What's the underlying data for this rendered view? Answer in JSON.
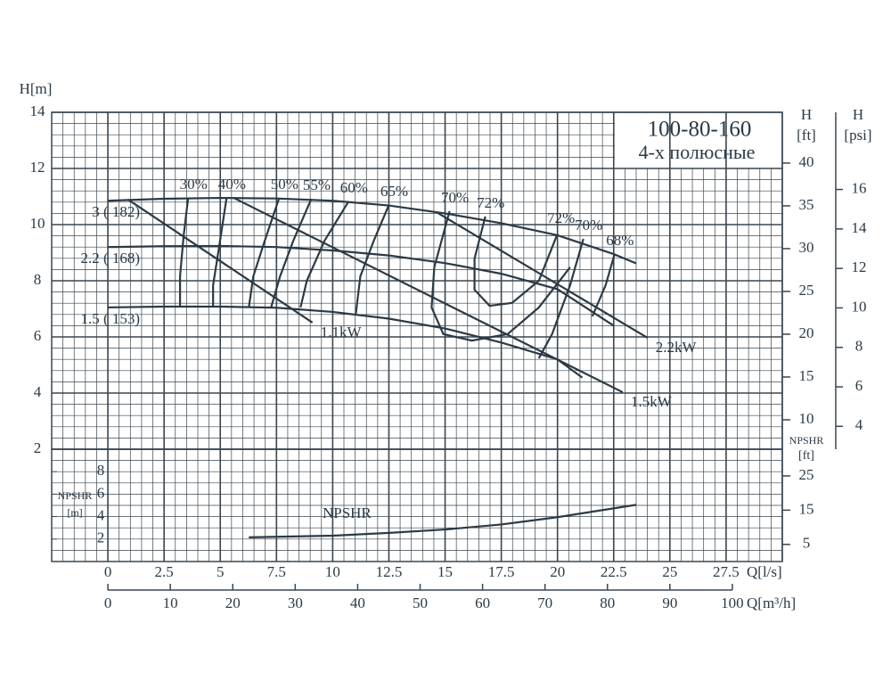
{
  "chart_data": [
    {
      "type": "line",
      "title": "100-80-160",
      "subtitle": "4-х полюсные",
      "ylabel": "H[m]",
      "y2label": [
        "H",
        "[ft]"
      ],
      "y3label": [
        "H",
        "[psi]"
      ],
      "xlim": [
        -2.5,
        30
      ],
      "ylim": [
        2,
        14
      ],
      "yticks": [
        2,
        4,
        6,
        8,
        10,
        12,
        14
      ],
      "y2lim": [
        6.56,
        45.93
      ],
      "y2ticks": [
        10,
        15,
        20,
        25,
        30,
        35,
        40
      ],
      "y3lim": [
        2.84,
        19.91
      ],
      "y3ticks": [
        4,
        6,
        8,
        10,
        12,
        14,
        16
      ],
      "grid": true,
      "minor_grid": {
        "x": 0.5,
        "y": 0.4
      },
      "color": "#2b3a45",
      "head_curves": [
        {
          "name": "3 ( 182)",
          "x": [
            0,
            2.5,
            5,
            7.5,
            10,
            12.5,
            15,
            17.5,
            20,
            22.5,
            23.5
          ],
          "values": [
            10.85,
            10.92,
            10.95,
            10.93,
            10.85,
            10.68,
            10.4,
            10.05,
            9.62,
            8.95,
            8.62
          ]
        },
        {
          "name": "2.2 ( 168)",
          "x": [
            0,
            2.5,
            5,
            7.5,
            10,
            12.5,
            15,
            17.5,
            20,
            22.5
          ],
          "values": [
            9.2,
            9.23,
            9.24,
            9.2,
            9.08,
            8.9,
            8.63,
            8.25,
            7.7,
            6.4
          ]
        },
        {
          "name": "1.5 ( 153)",
          "x": [
            0,
            2.5,
            5,
            7.5,
            10,
            12.5,
            15,
            17.5,
            20,
            21.1
          ],
          "values": [
            7.05,
            7.08,
            7.08,
            7.04,
            6.89,
            6.65,
            6.3,
            5.8,
            5.2,
            4.55
          ]
        }
      ],
      "power_lines": [
        {
          "name": "1.1kW",
          "x": [
            0.9,
            9.1
          ],
          "values": [
            10.89,
            6.51
          ]
        },
        {
          "name": "1.5kW",
          "x": [
            5.6,
            22.9
          ],
          "values": [
            10.95,
            4.03
          ]
        },
        {
          "name": "2.2kW",
          "x": [
            14.6,
            24.0
          ],
          "values": [
            10.45,
            5.97
          ]
        }
      ],
      "efficiency_contours": [
        {
          "labels": [
            "30%"
          ],
          "x": [
            3.57,
            3.37,
            3.21,
            3.21
          ],
          "values": [
            10.95,
            9.6,
            8.16,
            7.05
          ]
        },
        {
          "labels": [
            "40%"
          ],
          "x": [
            5.28,
            4.96,
            4.68,
            4.68
          ],
          "values": [
            10.95,
            9.27,
            7.84,
            7.05
          ]
        },
        {
          "labels": [
            "50%"
          ],
          "x": [
            7.62,
            6.98,
            6.47,
            6.27
          ],
          "values": [
            10.95,
            9.43,
            8.16,
            7.05
          ]
        },
        {
          "labels": [
            "55%"
          ],
          "x": [
            9.05,
            8.25,
            7.66,
            7.26
          ],
          "values": [
            10.92,
            9.43,
            8.16,
            7.05
          ]
        },
        {
          "labels": [
            "60%"
          ],
          "x": [
            10.71,
            9.64,
            8.85,
            8.57
          ],
          "values": [
            10.83,
            9.43,
            8.0,
            7.05
          ]
        },
        {
          "labels": [
            "65%"
          ],
          "x": [
            12.5,
            11.83,
            11.23,
            11.03
          ],
          "values": [
            10.7,
            9.43,
            8.16,
            6.83
          ]
        },
        {
          "labels": [
            "70%"
          ],
          "x": [
            15.2,
            14.52,
            14.4,
            14.92,
            16.19,
            17.78,
            19.17,
            20.56
          ],
          "values": [
            10.48,
            8.48,
            7.05,
            6.1,
            5.87,
            6.1,
            7.05,
            8.48
          ]
        },
        {
          "labels": [
            "72%",
            "72%"
          ],
          "x": [
            16.79,
            16.31,
            16.31,
            16.98,
            17.98,
            19.17,
            19.96
          ],
          "values": [
            10.29,
            8.79,
            7.68,
            7.11,
            7.21,
            8.0,
            9.59
          ]
        },
        {
          "labels": [
            "70%"
          ],
          "x": [
            21.15,
            20.56,
            19.76,
            19.17
          ],
          "values": [
            9.49,
            7.84,
            6.1,
            5.24
          ]
        },
        {
          "labels": [
            "68%"
          ],
          "x": [
            22.54,
            22.14,
            21.55
          ],
          "values": [
            8.95,
            7.84,
            6.73
          ]
        }
      ]
    },
    {
      "type": "line",
      "ylabel": [
        "NPSHR",
        "[m]"
      ],
      "y2label": [
        "NPSHR",
        "[ft]"
      ],
      "xlim": [
        -2.5,
        30
      ],
      "xticks": [
        0,
        2.5,
        5,
        7.5,
        10,
        12.5,
        15,
        17.5,
        20,
        22.5,
        25,
        27.5
      ],
      "xlabel": "Q[l/s]",
      "x2lim": [
        -9,
        108
      ],
      "x2ticks": [
        0,
        10,
        20,
        30,
        40,
        50,
        60,
        70,
        80,
        90,
        100
      ],
      "x2label": "Q[m³/h]",
      "ylim": [
        0,
        10
      ],
      "yticks": [
        2,
        4,
        6,
        8
      ],
      "y2lim": [
        0,
        32.8
      ],
      "y2ticks": [
        5,
        15,
        25
      ],
      "grid": true,
      "minor_grid": {
        "x": 0.5,
        "y": 1
      },
      "color": "#2b3a45",
      "series": [
        {
          "name": "NPSHR",
          "x": [
            6.27,
            10,
            12.5,
            15,
            17.5,
            20,
            23.5
          ],
          "values": [
            2.15,
            2.3,
            2.55,
            2.85,
            3.3,
            3.95,
            5.05
          ]
        }
      ]
    }
  ]
}
